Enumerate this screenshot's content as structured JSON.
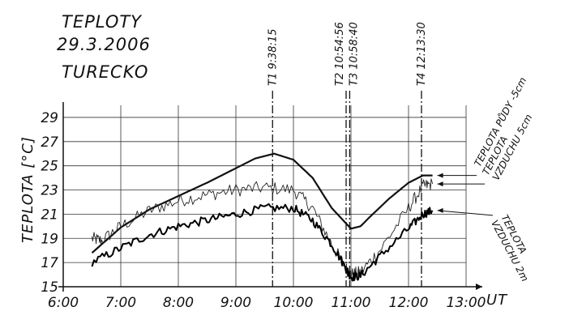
{
  "header": {
    "title_line1": "TEPLOTY",
    "title_line2": "29.3.2006",
    "title_line3": "TURECKO"
  },
  "chart_data": {
    "type": "line",
    "grid": true,
    "xlabel": "UT",
    "ylabel": "TEPLOTA [°C]",
    "xlim": [
      "6:00",
      "13:00"
    ],
    "ylim": [
      15,
      30
    ],
    "x_ticks": [
      "6:00",
      "7:00",
      "8:00",
      "9:00",
      "10:00",
      "11:00",
      "12:00",
      "13:00"
    ],
    "y_ticks": [
      15,
      17,
      19,
      21,
      23,
      25,
      27,
      29
    ],
    "markers": [
      {
        "label": "T1 9:38:15",
        "time": "9:38:15"
      },
      {
        "label": "T2 10:54:56",
        "time": "10:54:56"
      },
      {
        "label": "T3 10:58:40",
        "time": "10:58:40"
      },
      {
        "label": "T4 12:13:30",
        "time": "12:13:30"
      }
    ],
    "series": [
      {
        "name": "TEPLOTA PŮDY - 5cm",
        "label_lines": [
          "TEPLOTA PŮDY -5cm"
        ],
        "stroke": "#111111",
        "width": 2.2,
        "noise": 0,
        "x": [
          "6:30",
          "7:00",
          "7:30",
          "8:00",
          "8:30",
          "9:00",
          "9:20",
          "9:40",
          "10:00",
          "10:20",
          "10:40",
          "11:00",
          "11:10",
          "11:20",
          "11:40",
          "12:00",
          "12:15",
          "12:25"
        ],
        "y": [
          17.8,
          19.9,
          21.4,
          22.5,
          23.6,
          24.8,
          25.6,
          26.0,
          25.5,
          24.0,
          21.5,
          19.8,
          20.0,
          20.8,
          22.3,
          23.6,
          24.2,
          24.2
        ]
      },
      {
        "name": "TEPLOTA VZDUCHU 5cm",
        "label_lines": [
          "TEPLOTA",
          "VZDUCHU 5cm"
        ],
        "stroke": "#222222",
        "width": 0.9,
        "noise": 0.55,
        "x": [
          "6:30",
          "6:40",
          "7:00",
          "7:30",
          "8:00",
          "8:30",
          "9:00",
          "9:30",
          "10:00",
          "10:20",
          "10:40",
          "10:55",
          "11:00",
          "11:10",
          "11:30",
          "12:00",
          "12:15",
          "12:25"
        ],
        "y": [
          19.0,
          18.8,
          20.0,
          21.3,
          22.1,
          22.6,
          23.0,
          23.2,
          23.0,
          21.5,
          18.5,
          16.5,
          16.0,
          16.2,
          18.0,
          21.5,
          23.3,
          23.5
        ]
      },
      {
        "name": "TEPLOTA VZDUCHU 2m",
        "label_lines": [
          "TEPLOTA",
          "VZDUCHU 2m"
        ],
        "stroke": "#000000",
        "width": 2.0,
        "noise": 0.35,
        "x": [
          "6:30",
          "7:00",
          "7:30",
          "8:00",
          "8:30",
          "9:00",
          "9:30",
          "10:00",
          "10:20",
          "10:40",
          "10:55",
          "11:00",
          "11:10",
          "11:30",
          "12:00",
          "12:15",
          "12:25"
        ],
        "y": [
          17.0,
          18.2,
          19.3,
          20.0,
          20.5,
          21.0,
          21.5,
          21.5,
          20.5,
          18.5,
          16.5,
          15.8,
          15.9,
          17.5,
          19.8,
          21.0,
          21.3
        ]
      }
    ]
  }
}
